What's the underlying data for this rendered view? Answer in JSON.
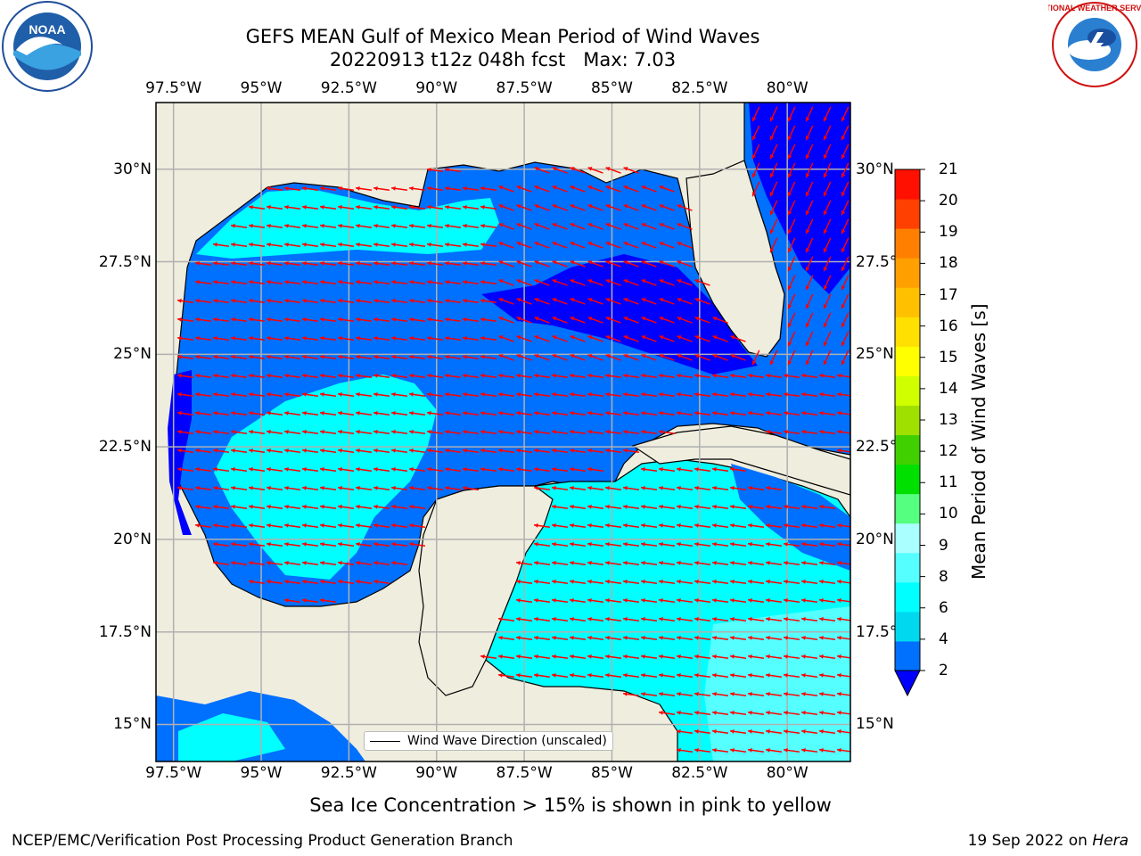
{
  "header": {
    "title_line1": "GEFS MEAN Gulf of Mexico Mean Period of Wind Waves",
    "title_line2": "20220913 t12z 048h fcst   Max: 7.03"
  },
  "logos": {
    "left": {
      "name": "NOAA",
      "ring_text": "NATIONAL OCEANIC AND ATMOSPHERIC ADMINISTRATION · U.S. DEPARTMENT OF COMMERCE"
    },
    "right": {
      "name": "NATIONAL WEATHER SERVICE"
    }
  },
  "map": {
    "lon_ticks": [
      "97.5°W",
      "95°W",
      "92.5°W",
      "90°W",
      "87.5°W",
      "85°W",
      "82.5°W",
      "80°W"
    ],
    "lat_ticks": [
      "30°N",
      "27.5°N",
      "25°N",
      "22.5°N",
      "20°N",
      "17.5°N",
      "15°N"
    ],
    "lon_range": [
      -98.0,
      -78.2
    ],
    "lat_range": [
      14.0,
      31.8
    ],
    "grid": true,
    "legend": {
      "label": "Wind Wave Direction (unscaled)",
      "placement": "bottom-center"
    },
    "colors": {
      "land": "#efedde",
      "coast": "#000000",
      "grid": "#b0b0b0",
      "arrow": "#ff0000"
    }
  },
  "colorbar": {
    "label": "Mean Period of Wind Waves [s]",
    "ticks": [
      "2",
      "4",
      "6",
      "8",
      "9",
      "10",
      "11",
      "12",
      "13",
      "14",
      "15",
      "16",
      "17",
      "18",
      "19",
      "20",
      "21"
    ],
    "colors": [
      "#0070ff",
      "#00d8f0",
      "#00ffff",
      "#55ffff",
      "#aaffff",
      "#55ff80",
      "#00e000",
      "#40d000",
      "#a0e000",
      "#d0ff00",
      "#ffff00",
      "#ffe000",
      "#ffc000",
      "#ffa000",
      "#ff8000",
      "#ff4000",
      "#ff1000"
    ],
    "under_color": "#0000ff"
  },
  "notes": {
    "sea_ice": "Sea Ice Concentration > 15% is shown in pink to yellow"
  },
  "footer": {
    "left": "NCEP/EMC/Verification Post Processing Product Generation Branch",
    "right_date": "19 Sep 2022 on ",
    "right_host": "Hera"
  }
}
